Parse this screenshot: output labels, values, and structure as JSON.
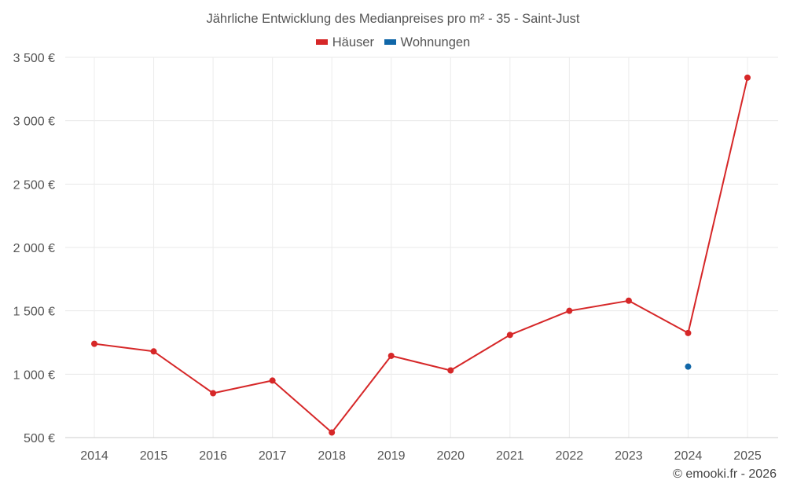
{
  "chart_data": {
    "type": "line",
    "title": "Jährliche Entwicklung des Medianpreises pro m² - 35 - Saint-Just",
    "xlabel": "",
    "ylabel": "",
    "categories": [
      "2014",
      "2015",
      "2016",
      "2017",
      "2018",
      "2019",
      "2020",
      "2021",
      "2022",
      "2023",
      "2024",
      "2025"
    ],
    "ylim": [
      500,
      3500
    ],
    "yticks": [
      500,
      1000,
      1500,
      2000,
      2500,
      3000,
      3500
    ],
    "ytick_labels": [
      "500 €",
      "1 000 €",
      "1 500 €",
      "2 000 €",
      "2 500 €",
      "3 000 €",
      "3 500 €"
    ],
    "grid": true,
    "series": [
      {
        "name": "Häuser",
        "color": "#d62728",
        "values": [
          1240,
          1180,
          850,
          950,
          540,
          1145,
          1030,
          1310,
          1500,
          1580,
          1325,
          3340
        ]
      },
      {
        "name": "Wohnungen",
        "color": "#1167a8",
        "values": [
          null,
          null,
          null,
          null,
          null,
          null,
          null,
          null,
          null,
          null,
          1060,
          null
        ]
      }
    ]
  },
  "credit": "© emooki.fr - 2026"
}
